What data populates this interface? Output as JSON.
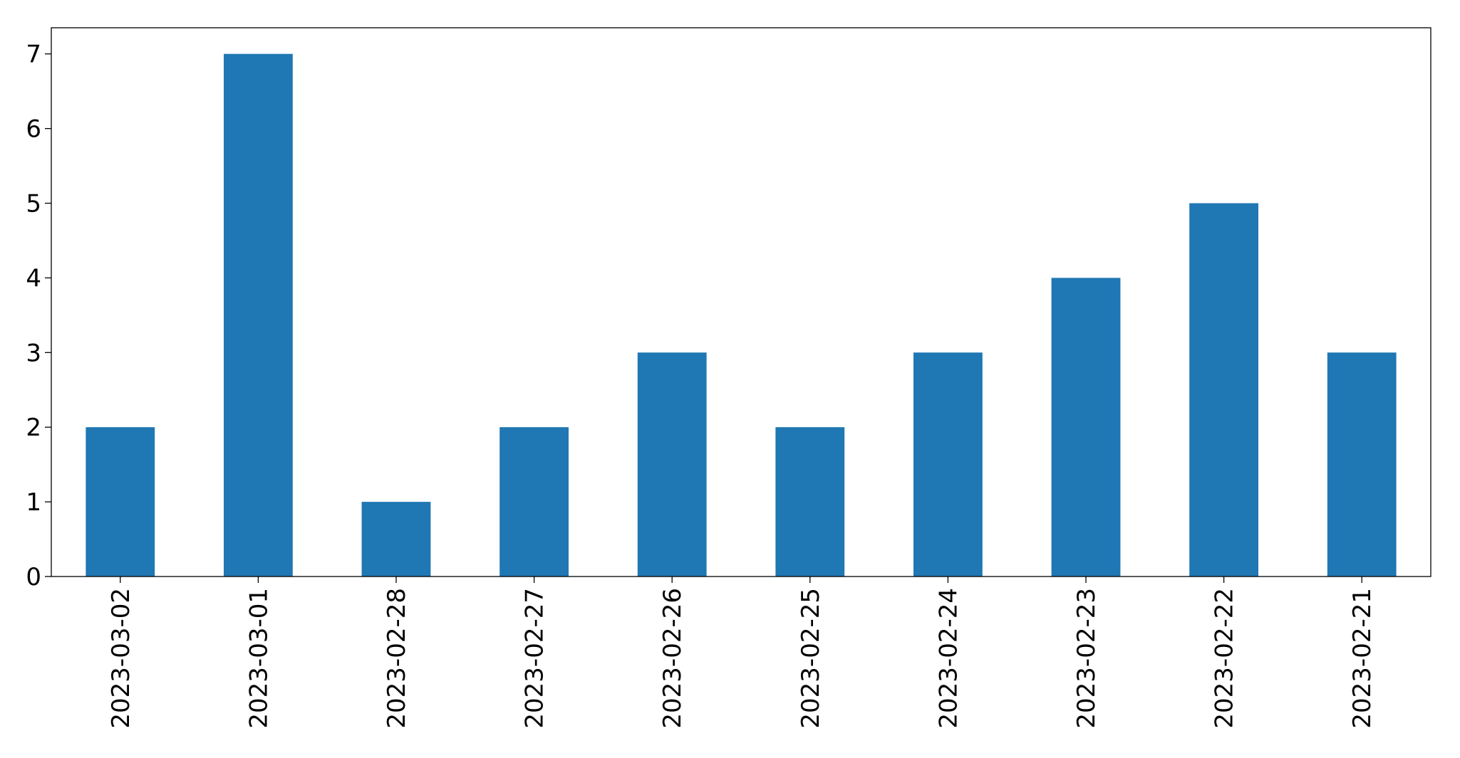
{
  "chart_data": {
    "type": "bar",
    "categories": [
      "2023-03-02",
      "2023-03-01",
      "2023-02-28",
      "2023-02-27",
      "2023-02-26",
      "2023-02-25",
      "2023-02-24",
      "2023-02-23",
      "2023-02-22",
      "2023-02-21"
    ],
    "values": [
      2,
      7,
      1,
      2,
      3,
      2,
      3,
      4,
      5,
      3
    ],
    "color": "#1f77b4",
    "ylim": [
      0,
      7.35
    ],
    "yticks": [
      0,
      1,
      2,
      3,
      4,
      5,
      6,
      7
    ],
    "grid": false
  }
}
